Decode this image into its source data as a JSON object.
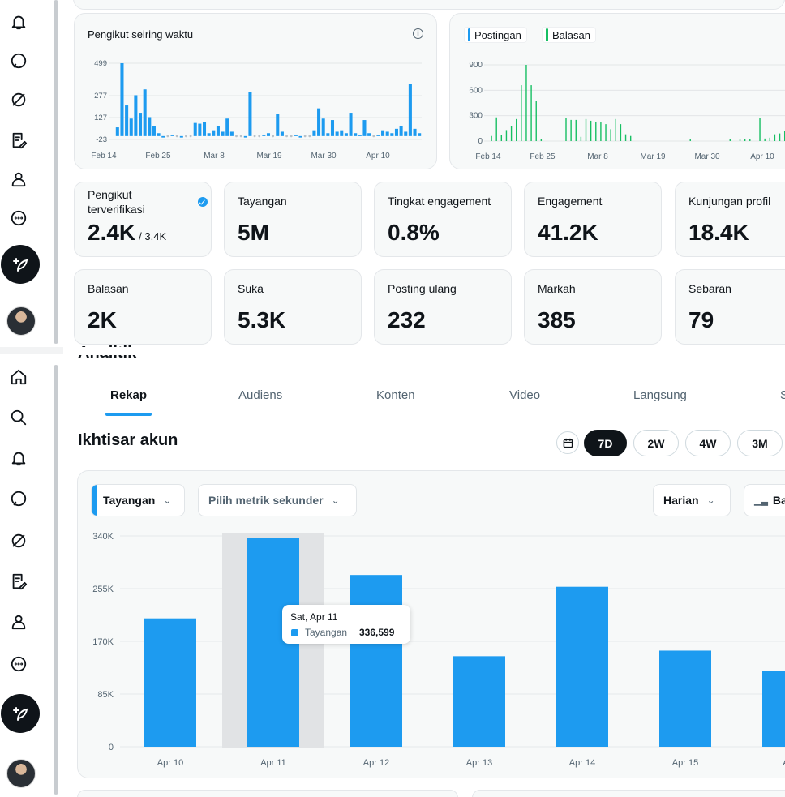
{
  "rail": {
    "icons": [
      "bell-icon",
      "message-icon",
      "grok-icon",
      "edit-list-icon",
      "profile-icon",
      "more-icon",
      "post-icon"
    ],
    "icons_lower": [
      "home-icon",
      "search-icon",
      "bell-icon",
      "message-icon",
      "grok-icon",
      "edit-list-icon",
      "profile-icon",
      "more-icon",
      "post-icon"
    ]
  },
  "followers_chart": {
    "title": "Pengikut seiring waktu",
    "chart_data": {
      "type": "bar",
      "title": "Pengikut seiring waktu",
      "y_ticks": [
        "499",
        "277",
        "127",
        "-23"
      ],
      "x_ticks": [
        "Feb 14",
        "Feb 25",
        "Mar 8",
        "Mar 19",
        "Mar 30",
        "Apr 10"
      ],
      "ylim": [
        -23,
        499
      ],
      "values": [
        60,
        499,
        210,
        120,
        280,
        160,
        320,
        130,
        70,
        20,
        -10,
        5,
        10,
        0,
        -10,
        5,
        0,
        90,
        85,
        95,
        20,
        40,
        70,
        30,
        120,
        30,
        5,
        0,
        -10,
        300,
        5,
        0,
        10,
        20,
        5,
        150,
        30,
        5,
        0,
        10,
        -10,
        0,
        5,
        40,
        190,
        120,
        20,
        110,
        30,
        40,
        20,
        160,
        20,
        10,
        110,
        20,
        5,
        10,
        40,
        30,
        20,
        50,
        70,
        30,
        360,
        50,
        20
      ]
    }
  },
  "posts_chart": {
    "legend_posts": "Postingan",
    "legend_replies": "Balasan",
    "chart_data": {
      "type": "bar",
      "series": [
        {
          "name": "Postingan",
          "color": "#1d9bf0"
        },
        {
          "name": "Balasan",
          "color": "#17bf63"
        }
      ],
      "y_ticks": [
        "900",
        "600",
        "300",
        "0"
      ],
      "x_ticks": [
        "Feb 14",
        "Feb 25",
        "Mar 8",
        "Mar 19",
        "Mar 30",
        "Apr 10"
      ],
      "ylim": [
        0,
        900
      ],
      "values": [
        60,
        280,
        70,
        130,
        180,
        260,
        660,
        900,
        660,
        470,
        20,
        0,
        0,
        0,
        0,
        270,
        250,
        250,
        50,
        260,
        240,
        230,
        220,
        200,
        140,
        260,
        200,
        80,
        60,
        0,
        0,
        0,
        0,
        0,
        0,
        0,
        0,
        0,
        0,
        0,
        20,
        0,
        0,
        0,
        0,
        0,
        0,
        0,
        20,
        0,
        20,
        20,
        20,
        0,
        270,
        30,
        40,
        80,
        90,
        120,
        200,
        240
      ]
    }
  },
  "stats_row1": [
    {
      "label": "Pengikut terverifikasi",
      "value": "2.4K",
      "sub": "/ 3.4K",
      "verified": true
    },
    {
      "label": "Tayangan",
      "value": "5M"
    },
    {
      "label": "Tingkat engagement",
      "value": "0.8%"
    },
    {
      "label": "Engagement",
      "value": "41.2K"
    },
    {
      "label": "Kunjungan profil",
      "value": "18.4K"
    }
  ],
  "stats_row2": [
    {
      "label": "Balasan",
      "value": "2K"
    },
    {
      "label": "Suka",
      "value": "5.3K"
    },
    {
      "label": "Posting ulang",
      "value": "232"
    },
    {
      "label": "Markah",
      "value": "385"
    },
    {
      "label": "Sebaran",
      "value": "79"
    }
  ],
  "page_title": "Analitik",
  "tabs": [
    "Rekap",
    "Audiens",
    "Konten",
    "Video",
    "Langsung",
    "S"
  ],
  "section_title": "Ikhtisar akun",
  "ranges": [
    "7D",
    "2W",
    "4W",
    "3M"
  ],
  "controls": {
    "metric": "Tayangan",
    "secondary": "Pilih metrik sekunder",
    "granularity": "Harian",
    "chart_type": "Ba"
  },
  "tooltip": {
    "date": "Sat, Apr 11",
    "name": "Tayangan",
    "value": "336,599"
  },
  "main_chart": {
    "chart_data": {
      "type": "bar",
      "title": "Tayangan",
      "categories": [
        "Apr 10",
        "Apr 11",
        "Apr 12",
        "Apr 13",
        "Apr 14",
        "Apr 15",
        "Ap"
      ],
      "values": [
        207000,
        336599,
        277000,
        146000,
        258000,
        155000,
        122000
      ],
      "y_ticks": [
        "340K",
        "255K",
        "170K",
        "85K",
        "0"
      ],
      "ylim": [
        0,
        340000
      ],
      "highlight_index": 1,
      "color": "#1d9bf0"
    }
  }
}
